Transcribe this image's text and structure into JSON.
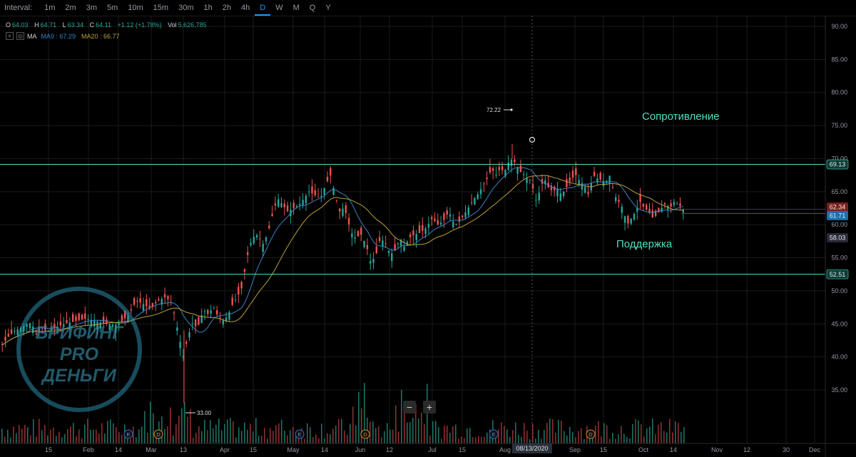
{
  "toolbar": {
    "interval_label": "Interval:",
    "intervals": [
      "1m",
      "2m",
      "3m",
      "5m",
      "10m",
      "15m",
      "30m",
      "1h",
      "2h",
      "4h",
      "D",
      "W",
      "M",
      "Q",
      "Y"
    ],
    "active": "D"
  },
  "ohlc": {
    "o_label": "O",
    "o": "64.03",
    "h_label": "H",
    "h": "64.71",
    "l_label": "L",
    "l": "63.34",
    "c_label": "C",
    "c": "64.11",
    "change": "+1.12 (+1.78%)",
    "vol_label": "Vol",
    "vol": "5,626,785"
  },
  "ma": {
    "close_icon": "×",
    "settings_icon": "◎",
    "title": "MA",
    "ma9": "MA9 : 67.29",
    "ma20": "MA20 : 66.77"
  },
  "colors": {
    "up": "#26a69a",
    "down": "#ef5350",
    "ma9": "#3b82c4",
    "ma20": "#b8a13a",
    "level_line": "#4fe0c0",
    "grid": "#1a1a1a",
    "axis_text": "#9598a1"
  },
  "annotations": {
    "resistance": "Сопротивление",
    "support": "Поддержка",
    "high_label": "72.22",
    "low_label": "33.00",
    "crosshair_date": "08/13/2020",
    "zoom_out": "−",
    "zoom_in": "+"
  },
  "watermark": {
    "line1": "БРИФИНГ",
    "line2": "PRO",
    "line3": "ДЕНЬГИ"
  },
  "chart_data": {
    "type": "candlestick",
    "y_ticks": [
      "90.00",
      "85.00",
      "80.00",
      "75.00",
      "70.00",
      "65.00",
      "60.00",
      "55.00",
      "50.00",
      "45.00",
      "40.00",
      "35.00"
    ],
    "x_ticks": [
      "15",
      "Feb",
      "14",
      "Mar",
      "13",
      "Apr",
      "15",
      "May",
      "14",
      "Jun",
      "12",
      "Jul",
      "15",
      "Aug",
      "Sep",
      "15",
      "Oct",
      "14",
      "Nov",
      "12",
      "30",
      "Dec"
    ],
    "ylim": [
      30,
      92
    ],
    "price_tags": [
      {
        "label": "69.13",
        "value": 69.13
      },
      {
        "label": "62.34",
        "value": 62.34
      },
      {
        "label": "61.71",
        "value": 61.71
      },
      {
        "label": "58.03",
        "value": 58.03
      },
      {
        "label": "52.51",
        "value": 52.51
      }
    ],
    "levels": [
      {
        "name": "Сопротивление",
        "value": 69.13
      },
      {
        "name": "Поддержка",
        "value": 52.51
      }
    ],
    "earnings_markers": [
      "E",
      "D",
      "E",
      "D",
      "E",
      "D"
    ],
    "path_points": [
      [
        0,
        41.5
      ],
      [
        10,
        43
      ],
      [
        20,
        44
      ],
      [
        30,
        44.5
      ],
      [
        40,
        45.2
      ],
      [
        50,
        44
      ],
      [
        55,
        43.5
      ],
      [
        62,
        44
      ],
      [
        70,
        44
      ],
      [
        80,
        44.6
      ],
      [
        90,
        45
      ],
      [
        100,
        45.3
      ],
      [
        110,
        45.6
      ],
      [
        120,
        45.8
      ],
      [
        130,
        45.5
      ],
      [
        140,
        45.2
      ],
      [
        150,
        45
      ],
      [
        160,
        44.8
      ],
      [
        170,
        45.4
      ],
      [
        180,
        46.5
      ],
      [
        190,
        48.5
      ],
      [
        200,
        48
      ],
      [
        210,
        47.2
      ],
      [
        220,
        48.5
      ],
      [
        230,
        49
      ],
      [
        238,
        48.5
      ],
      [
        243,
        46.5
      ],
      [
        248,
        44
      ],
      [
        252,
        42
      ],
      [
        256,
        40
      ],
      [
        260,
        42
      ],
      [
        265,
        44
      ],
      [
        270,
        45.5
      ],
      [
        275,
        44
      ],
      [
        280,
        46
      ],
      [
        285,
        47
      ],
      [
        290,
        46.5
      ],
      [
        298,
        47.5
      ],
      [
        305,
        46
      ],
      [
        312,
        45.5
      ],
      [
        318,
        46.2
      ],
      [
        325,
        48
      ],
      [
        332,
        49.2
      ],
      [
        338,
        50.5
      ],
      [
        345,
        55
      ],
      [
        352,
        58
      ],
      [
        360,
        58.5
      ],
      [
        368,
        57
      ],
      [
        375,
        59
      ],
      [
        382,
        62
      ],
      [
        388,
        64
      ],
      [
        395,
        63
      ],
      [
        402,
        62
      ],
      [
        410,
        62.5
      ],
      [
        418,
        63
      ],
      [
        425,
        64
      ],
      [
        432,
        65
      ],
      [
        440,
        64.5
      ],
      [
        448,
        64
      ],
      [
        455,
        66
      ],
      [
        462,
        67.5
      ],
      [
        470,
        64
      ],
      [
        475,
        62
      ],
      [
        480,
        62.5
      ],
      [
        485,
        61.5
      ],
      [
        490,
        59
      ],
      [
        497,
        58
      ],
      [
        505,
        58.5
      ],
      [
        512,
        57
      ],
      [
        518,
        54.5
      ],
      [
        525,
        55
      ],
      [
        532,
        58
      ],
      [
        540,
        57
      ],
      [
        546,
        55.5
      ],
      [
        552,
        56
      ],
      [
        560,
        58
      ],
      [
        566,
        56.5
      ],
      [
        572,
        58
      ],
      [
        580,
        58.5
      ],
      [
        588,
        58.8
      ],
      [
        596,
        59.5
      ],
      [
        605,
        61
      ],
      [
        612,
        60
      ],
      [
        620,
        60.5
      ],
      [
        628,
        62
      ],
      [
        634,
        60.5
      ],
      [
        640,
        60
      ],
      [
        646,
        61
      ],
      [
        652,
        62
      ],
      [
        658,
        63
      ],
      [
        664,
        64
      ],
      [
        670,
        64.8
      ],
      [
        676,
        66
      ],
      [
        682,
        67
      ],
      [
        688,
        68.5
      ],
      [
        694,
        67.5
      ],
      [
        700,
        68.5
      ],
      [
        706,
        68
      ],
      [
        712,
        69.5
      ],
      [
        718,
        70
      ],
      [
        722,
        69
      ],
      [
        728,
        68
      ],
      [
        735,
        67.5
      ],
      [
        740,
        66.5
      ],
      [
        744,
        67.2
      ],
      [
        748,
        63.5
      ],
      [
        752,
        64
      ],
      [
        758,
        66
      ],
      [
        762,
        67
      ],
      [
        768,
        65.5
      ],
      [
        774,
        65
      ],
      [
        780,
        65.5
      ],
      [
        786,
        64.5
      ],
      [
        792,
        65.5
      ],
      [
        800,
        67
      ],
      [
        806,
        67.5
      ],
      [
        812,
        66.5
      ],
      [
        818,
        66
      ],
      [
        824,
        64.5
      ],
      [
        830,
        67.5
      ],
      [
        836,
        67
      ],
      [
        842,
        66.8
      ],
      [
        848,
        66.5
      ],
      [
        854,
        67.5
      ],
      [
        860,
        64.5
      ],
      [
        866,
        63.5
      ],
      [
        872,
        62.5
      ],
      [
        878,
        60
      ],
      [
        884,
        61
      ],
      [
        890,
        62
      ],
      [
        896,
        63.5
      ],
      [
        902,
        62.5
      ],
      [
        908,
        62
      ],
      [
        914,
        61
      ],
      [
        920,
        61.5
      ],
      [
        926,
        62.5
      ],
      [
        932,
        63.2
      ],
      [
        938,
        62.5
      ],
      [
        944,
        63.5
      ],
      [
        950,
        63
      ],
      [
        956,
        62.5
      ],
      [
        960,
        61.9
      ]
    ]
  }
}
